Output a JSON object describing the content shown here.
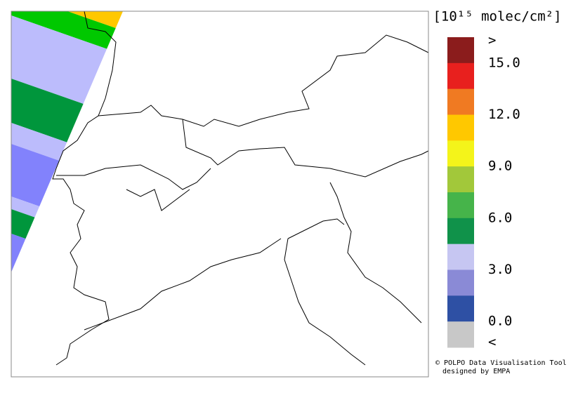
{
  "legend": {
    "title": "[10¹⁵ molec/cm²]",
    "colors": [
      "#8b1c1c",
      "#e8201e",
      "#f07a22",
      "#ffc800",
      "#f4f41a",
      "#a2c83a",
      "#46b44a",
      "#10924a",
      "#c6c6f2",
      "#8a8ad6",
      "#2e50a4",
      "#c8c8c8"
    ],
    "labels": [
      ">",
      "15.0",
      "12.0",
      "9.0",
      "6.0",
      "3.0",
      "0.0",
      "<"
    ]
  },
  "credits": {
    "line1": "© POLPO Data Visualisation Tool",
    "line2": "designed by EMPA"
  },
  "swath": {
    "colors": [
      "#ffc800",
      "#00c800",
      "#bcbcfc",
      "#00963c",
      "#bcbcfc",
      "#8282fc",
      "#bcbcfc",
      "#00963c",
      "#8282fc"
    ]
  }
}
